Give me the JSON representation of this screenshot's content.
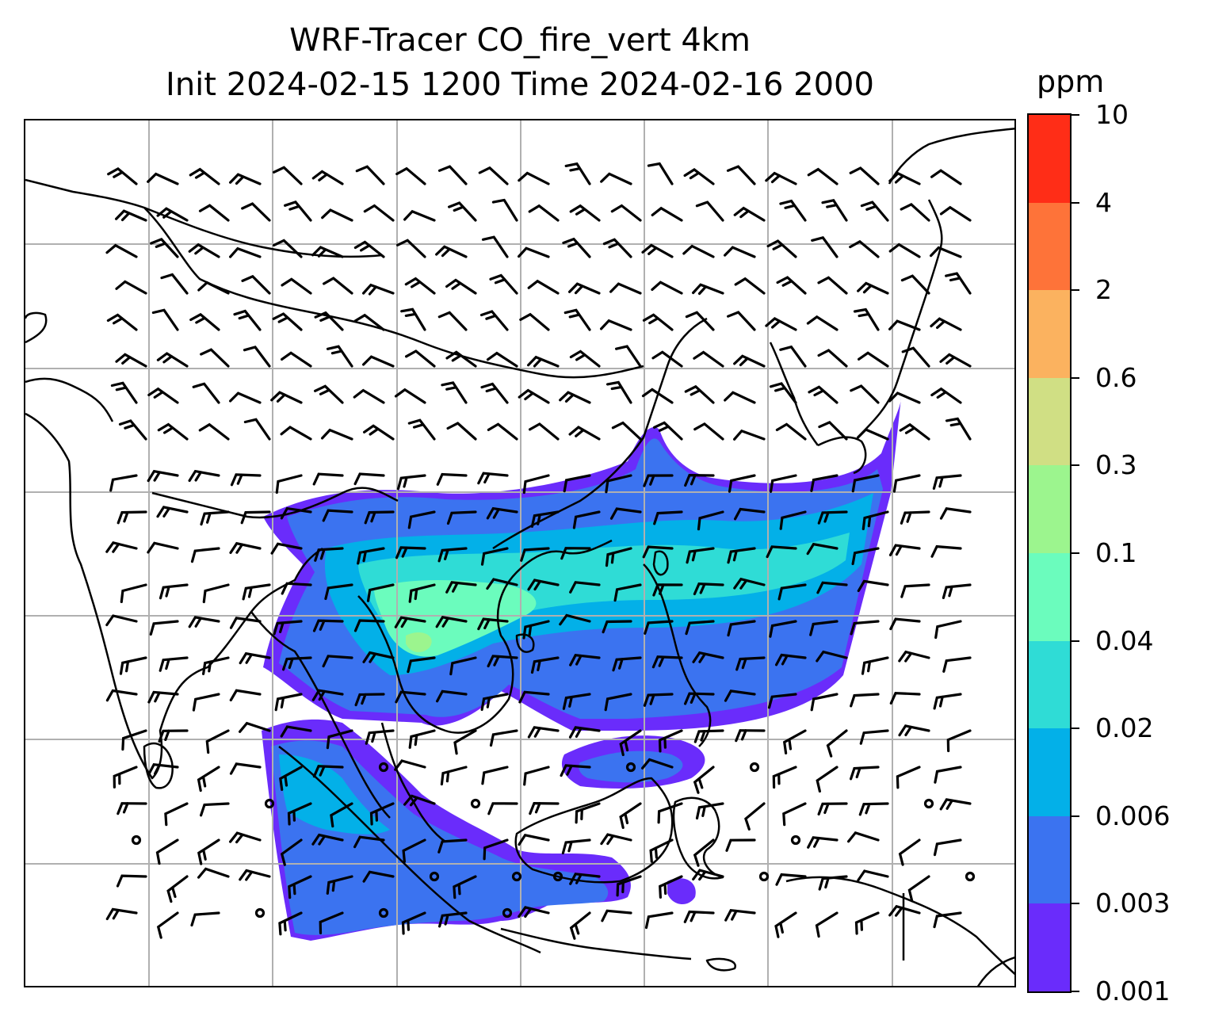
{
  "title": {
    "line1": "WRF-Tracer CO_fire_vert 4km",
    "line2": "Init 2024-02-15 1200 Time 2024-02-16 2000"
  },
  "colorbar": {
    "units": "ppm",
    "levels": [
      "0.001",
      "0.003",
      "0.006",
      "0.02",
      "0.04",
      "0.1",
      "0.3",
      "0.6",
      "2",
      "4",
      "10"
    ],
    "colors": [
      "#6a2cfb",
      "#3b73f0",
      "#03b0e8",
      "#2fdcd6",
      "#6bfcbd",
      "#9cf58e",
      "#d0df84",
      "#fbb25f",
      "#fe7339",
      "#ff2d17"
    ]
  },
  "map": {
    "gridlines": "on",
    "coastline_color": "#000000",
    "gridline_color": "#b0b0b0",
    "plume_colors": {
      "outer": "#6a2cfb",
      "base": "#3b73f0",
      "mid": "#03b0e8",
      "core": "#2fdcd6",
      "peak": "#6bfcbd",
      "max": "#9cf58e"
    },
    "overlay": "wind barbs"
  }
}
